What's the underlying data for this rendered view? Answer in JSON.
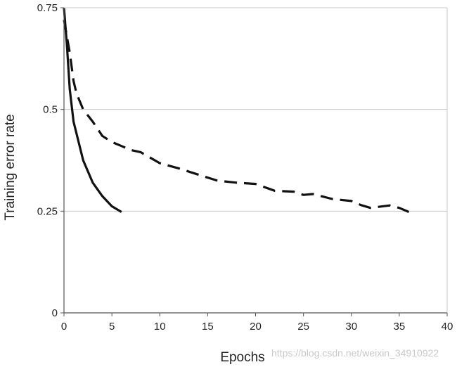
{
  "chart_data": {
    "type": "line",
    "title": "",
    "xlabel": "Epochs",
    "ylabel": "Training error rate",
    "xlim": [
      0,
      40
    ],
    "ylim": [
      0,
      0.75
    ],
    "xticks": [
      0,
      5,
      10,
      15,
      20,
      25,
      30,
      35,
      40
    ],
    "xtick_labels": [
      "0",
      "5",
      "10",
      "15",
      "20",
      "25",
      "30",
      "35",
      "40"
    ],
    "yticks": [
      0,
      0.25,
      0.5,
      0.75
    ],
    "ytick_labels": [
      "0",
      "0.25",
      "0.5",
      "0.75"
    ],
    "grid": "horizontal",
    "legend": "none",
    "series": [
      {
        "style": "solid",
        "color": "#111111",
        "x": [
          0,
          0.3,
          0.6,
          1,
          2,
          3,
          4,
          5,
          6
        ],
        "y": [
          0.75,
          0.66,
          0.55,
          0.47,
          0.375,
          0.32,
          0.287,
          0.262,
          0.248
        ]
      },
      {
        "style": "dashed",
        "color": "#111111",
        "x": [
          0,
          0.3,
          0.6,
          1,
          1.3,
          2,
          3,
          4,
          5,
          6,
          7,
          8,
          10,
          12,
          14,
          16,
          18,
          20,
          22,
          24,
          25,
          26,
          28,
          30,
          31,
          32,
          34,
          35,
          36
        ],
        "y": [
          0.72,
          0.68,
          0.64,
          0.57,
          0.54,
          0.5,
          0.47,
          0.435,
          0.42,
          0.41,
          0.4,
          0.395,
          0.368,
          0.355,
          0.34,
          0.325,
          0.32,
          0.317,
          0.3,
          0.298,
          0.29,
          0.292,
          0.28,
          0.275,
          0.265,
          0.258,
          0.264,
          0.258,
          0.248
        ]
      }
    ]
  },
  "watermark": "https://blog.csdn.net/weixin_34910922"
}
